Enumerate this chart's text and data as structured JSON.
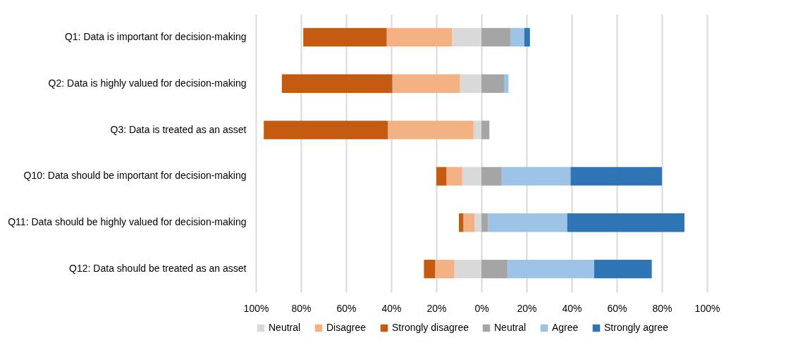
{
  "chart_data": {
    "type": "bar",
    "orientation": "horizontal",
    "stacked": true,
    "categories": [
      "Q1: Data is important for decision-making",
      "Q2: Data is highly valued for decision-making",
      "Q3: Data is treated as an asset",
      "Q10: Data should be important for decision-making",
      "Q11: Data should be highly valued for decision-making",
      "Q12: Data should be treated as an asset"
    ],
    "series": [
      {
        "name": "Neutral",
        "color": "#d9d9d9",
        "values": [
          -13,
          -9.5,
          -3.5,
          -8.5,
          -3,
          -12
        ]
      },
      {
        "name": "Disagree",
        "color": "#f4b183",
        "values": [
          -29,
          -30,
          -38,
          -7,
          -5,
          -8.5
        ]
      },
      {
        "name": "Strongly disagree",
        "color": "#c55a11",
        "values": [
          -37,
          -49,
          -55,
          -4.5,
          -2,
          -5
        ]
      },
      {
        "name": "Neutral",
        "color": "#a5a5a5",
        "values": [
          13,
          10,
          3.5,
          9,
          3,
          11.5
        ]
      },
      {
        "name": "Agree",
        "color": "#9dc3e6",
        "values": [
          6,
          2,
          null,
          30.5,
          35,
          38.5
        ]
      },
      {
        "name": "Strongly agree",
        "color": "#2e75b6",
        "values": [
          2.5,
          null,
          null,
          40.5,
          52,
          25.5
        ]
      }
    ],
    "xlim": [
      -100,
      100
    ],
    "xticks": [
      {
        "value": -100,
        "label": "100%"
      },
      {
        "value": -80,
        "label": "80%"
      },
      {
        "value": -60,
        "label": "60%"
      },
      {
        "value": -40,
        "label": "40%"
      },
      {
        "value": -20,
        "label": "20%"
      },
      {
        "value": 0,
        "label": "0%"
      },
      {
        "value": 20,
        "label": "20%"
      },
      {
        "value": 40,
        "label": "40%"
      },
      {
        "value": 60,
        "label": "60%"
      },
      {
        "value": 80,
        "label": "80%"
      },
      {
        "value": 100,
        "label": "100%"
      }
    ],
    "grid": "x",
    "legend": "bottom"
  }
}
